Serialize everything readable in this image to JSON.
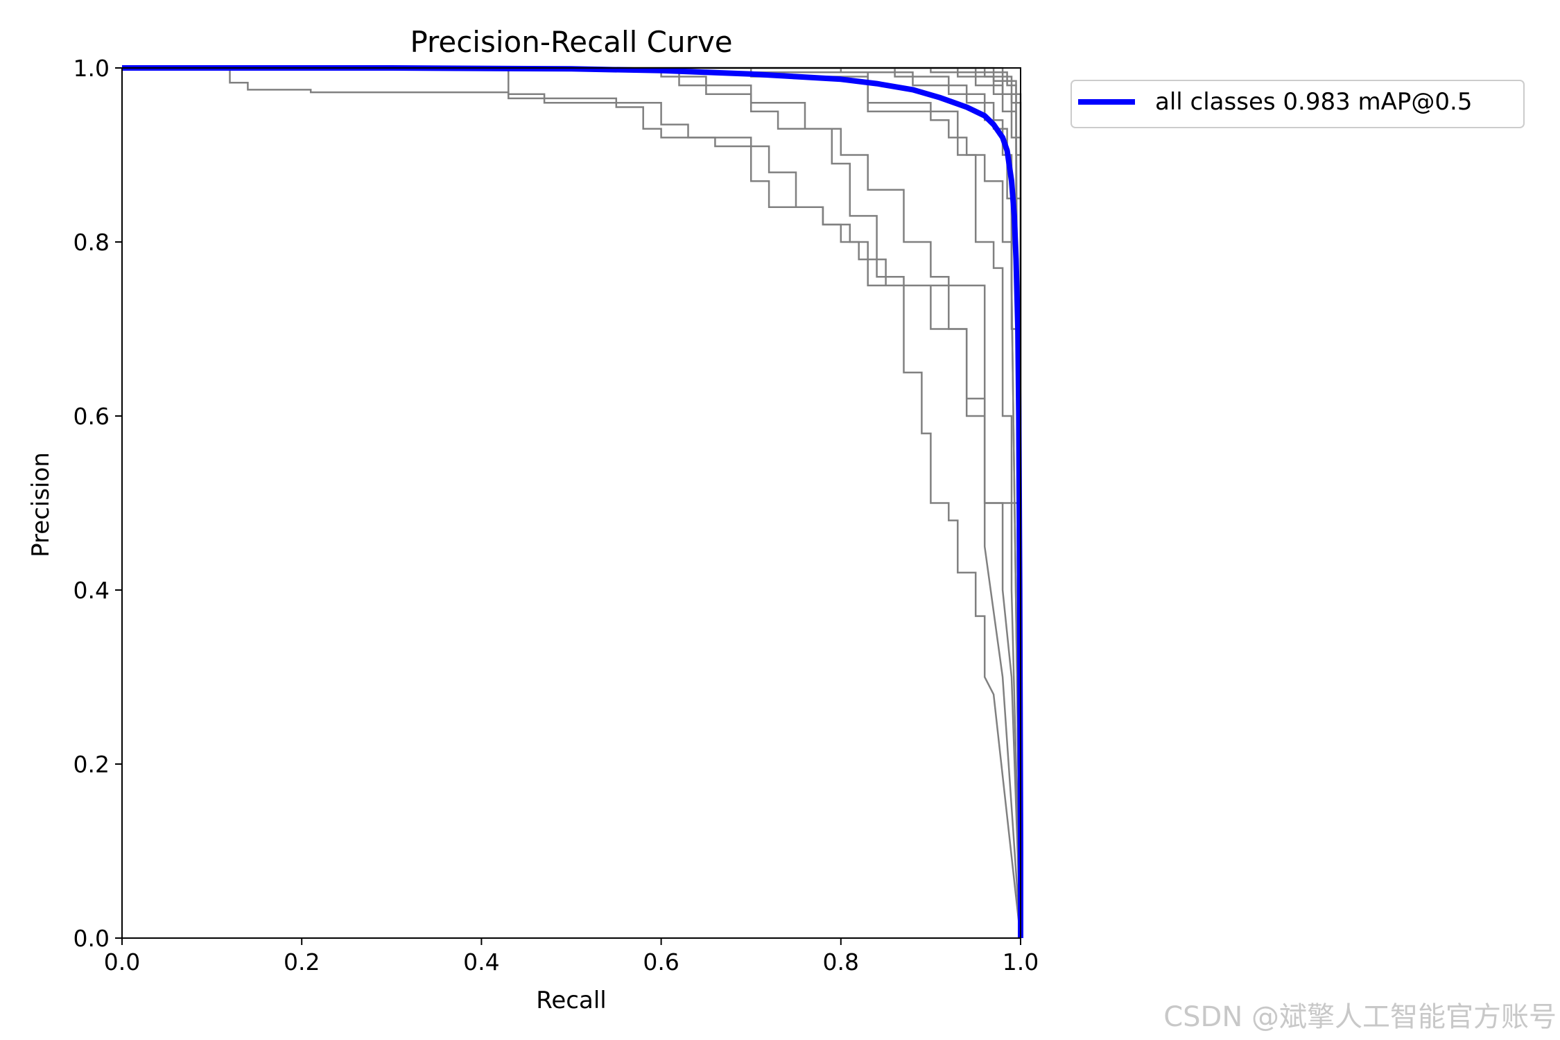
{
  "chart_data": {
    "type": "line",
    "title": "Precision-Recall Curve",
    "xlabel": "Recall",
    "ylabel": "Precision",
    "xlim": [
      0.0,
      1.0
    ],
    "ylim": [
      0.0,
      1.0
    ],
    "xticks": [
      "0.0",
      "0.2",
      "0.4",
      "0.6",
      "0.8",
      "1.0"
    ],
    "yticks": [
      "0.0",
      "0.2",
      "0.4",
      "0.6",
      "0.8",
      "1.0"
    ],
    "grid": false,
    "legend_position": "outside-top-right",
    "series_color_classes": "#808080",
    "series_color_all": "#0000ff",
    "class_series": [
      {
        "x": [
          0,
          0.12,
          0.12,
          0.14,
          0.14,
          0.21,
          0.21,
          0.43,
          0.43,
          0.55,
          0.55,
          0.58,
          0.58,
          0.6,
          0.6,
          0.7,
          0.7,
          0.72,
          0.72,
          0.75,
          0.75,
          0.78,
          0.78,
          0.81,
          0.81,
          0.83,
          0.83,
          0.96,
          0.96,
          1.0,
          1.0
        ],
        "y": [
          1.0,
          1.0,
          0.983,
          0.983,
          0.975,
          0.975,
          0.972,
          0.972,
          0.965,
          0.965,
          0.955,
          0.955,
          0.93,
          0.93,
          0.92,
          0.92,
          0.91,
          0.91,
          0.88,
          0.88,
          0.84,
          0.84,
          0.82,
          0.82,
          0.8,
          0.8,
          0.75,
          0.75,
          0.5,
          0.5,
          0.0
        ]
      },
      {
        "x": [
          0,
          0.43,
          0.43,
          0.47,
          0.47,
          0.6,
          0.6,
          0.63,
          0.63,
          0.66,
          0.66,
          0.7,
          0.7,
          0.72,
          0.72,
          0.78,
          0.78,
          0.8,
          0.8,
          0.82,
          0.82,
          0.85,
          0.85,
          0.9,
          0.9,
          0.94,
          0.94,
          0.96,
          0.96,
          0.98,
          1.0
        ],
        "y": [
          1.0,
          1.0,
          0.97,
          0.97,
          0.96,
          0.96,
          0.935,
          0.935,
          0.92,
          0.92,
          0.91,
          0.91,
          0.87,
          0.87,
          0.84,
          0.84,
          0.82,
          0.82,
          0.8,
          0.8,
          0.78,
          0.78,
          0.75,
          0.75,
          0.7,
          0.7,
          0.6,
          0.6,
          0.45,
          0.3,
          0.0
        ]
      },
      {
        "x": [
          0,
          0.6,
          0.6,
          0.65,
          0.65,
          0.7,
          0.7,
          0.73,
          0.73,
          0.79,
          0.79,
          0.81,
          0.81,
          0.84,
          0.84,
          0.87,
          0.87,
          0.89,
          0.89,
          0.9,
          0.9,
          0.92,
          0.92,
          0.93,
          0.93,
          0.95,
          0.95,
          0.96,
          0.96,
          0.97,
          1.0
        ],
        "y": [
          1.0,
          1.0,
          0.99,
          0.99,
          0.97,
          0.97,
          0.95,
          0.95,
          0.93,
          0.93,
          0.89,
          0.89,
          0.83,
          0.83,
          0.76,
          0.76,
          0.65,
          0.65,
          0.58,
          0.58,
          0.5,
          0.5,
          0.48,
          0.48,
          0.42,
          0.42,
          0.37,
          0.37,
          0.3,
          0.28,
          0.0
        ]
      },
      {
        "x": [
          0,
          0.62,
          0.62,
          0.7,
          0.7,
          0.76,
          0.76,
          0.8,
          0.8,
          0.83,
          0.83,
          0.87,
          0.87,
          0.9,
          0.9,
          0.92,
          0.92,
          0.94,
          0.94,
          0.96,
          0.96,
          0.98,
          0.98,
          0.99,
          1.0
        ],
        "y": [
          1.0,
          1.0,
          0.98,
          0.98,
          0.96,
          0.96,
          0.93,
          0.93,
          0.9,
          0.9,
          0.86,
          0.86,
          0.8,
          0.8,
          0.76,
          0.76,
          0.7,
          0.7,
          0.62,
          0.62,
          0.5,
          0.5,
          0.4,
          0.3,
          0.0
        ]
      },
      {
        "x": [
          0,
          0.7,
          0.7,
          0.83,
          0.83,
          0.9,
          0.9,
          0.92,
          0.92,
          0.94,
          0.94,
          0.96,
          0.96,
          0.98,
          0.98,
          0.99,
          0.99,
          1.0
        ],
        "y": [
          1.0,
          1.0,
          0.99,
          0.99,
          0.96,
          0.96,
          0.94,
          0.94,
          0.92,
          0.92,
          0.9,
          0.9,
          0.87,
          0.87,
          0.8,
          0.8,
          0.75,
          0.0
        ]
      },
      {
        "x": [
          0,
          0.63,
          0.63,
          0.83,
          0.83,
          0.93,
          0.93,
          0.95,
          0.95,
          0.97,
          0.97,
          0.98,
          0.98,
          0.99,
          0.99,
          1.0
        ],
        "y": [
          1.0,
          1.0,
          0.995,
          0.995,
          0.95,
          0.95,
          0.9,
          0.9,
          0.8,
          0.8,
          0.77,
          0.77,
          0.6,
          0.6,
          0.4,
          0.0
        ]
      },
      {
        "x": [
          0,
          0.8,
          0.8,
          0.88,
          0.88,
          0.94,
          0.94,
          0.97,
          0.97,
          0.985,
          0.985,
          0.99,
          0.99,
          1.0
        ],
        "y": [
          1.0,
          1.0,
          0.995,
          0.995,
          0.98,
          0.98,
          0.96,
          0.96,
          0.93,
          0.93,
          0.85,
          0.85,
          0.75,
          0.0
        ]
      },
      {
        "x": [
          0,
          0.86,
          0.86,
          0.92,
          0.92,
          0.96,
          0.96,
          0.98,
          0.98,
          0.99,
          0.99,
          1.0,
          1.0
        ],
        "y": [
          1.0,
          1.0,
          0.99,
          0.99,
          0.97,
          0.97,
          0.94,
          0.94,
          0.9,
          0.9,
          0.7,
          0.7,
          0.0
        ]
      },
      {
        "x": [
          0,
          0.9,
          0.9,
          0.95,
          0.95,
          0.98,
          0.98,
          0.995,
          0.995,
          1.0,
          1.0
        ],
        "y": [
          1.0,
          1.0,
          0.995,
          0.995,
          0.98,
          0.98,
          0.95,
          0.95,
          0.85,
          0.85,
          0.0
        ]
      },
      {
        "x": [
          0,
          0.93,
          0.93,
          0.97,
          0.97,
          0.99,
          0.99,
          1.0,
          1.0
        ],
        "y": [
          1.0,
          1.0,
          0.99,
          0.99,
          0.97,
          0.97,
          0.92,
          0.92,
          0.0
        ]
      },
      {
        "x": [
          0,
          0.95,
          0.95,
          0.985,
          0.985,
          0.995,
          0.995,
          1.0,
          1.0
        ],
        "y": [
          1.0,
          1.0,
          0.995,
          0.995,
          0.98,
          0.98,
          0.9,
          0.9,
          0.0
        ]
      },
      {
        "x": [
          0,
          0.96,
          0.96,
          0.99,
          0.99,
          1.0,
          1.0
        ],
        "y": [
          1.0,
          1.0,
          0.99,
          0.99,
          0.96,
          0.96,
          0.0
        ]
      },
      {
        "x": [
          0,
          0.97,
          0.97,
          0.995,
          0.995,
          1.0
        ],
        "y": [
          1.0,
          1.0,
          0.985,
          0.985,
          0.95,
          0.0
        ]
      },
      {
        "x": [
          0,
          0.98,
          0.98,
          1.0,
          1.0
        ],
        "y": [
          1.0,
          1.0,
          0.97,
          0.97,
          0.0
        ]
      }
    ],
    "all_classes": {
      "name": "all classes 0.983 mAP@0.5",
      "x": [
        0,
        0.3,
        0.5,
        0.6,
        0.65,
        0.7,
        0.75,
        0.8,
        0.84,
        0.88,
        0.91,
        0.94,
        0.96,
        0.97,
        0.98,
        0.985,
        0.99,
        0.993,
        0.995,
        0.997,
        0.998,
        0.999,
        1.0,
        1.0
      ],
      "y": [
        1.0,
        1.0,
        0.999,
        0.997,
        0.995,
        0.993,
        0.99,
        0.987,
        0.982,
        0.975,
        0.966,
        0.955,
        0.945,
        0.935,
        0.92,
        0.905,
        0.87,
        0.83,
        0.78,
        0.7,
        0.6,
        0.4,
        0.1,
        0.0
      ]
    }
  },
  "legend": {
    "label": "all classes 0.983 mAP@0.5"
  },
  "watermark": "CSDN @斌擎人工智能官方账号"
}
